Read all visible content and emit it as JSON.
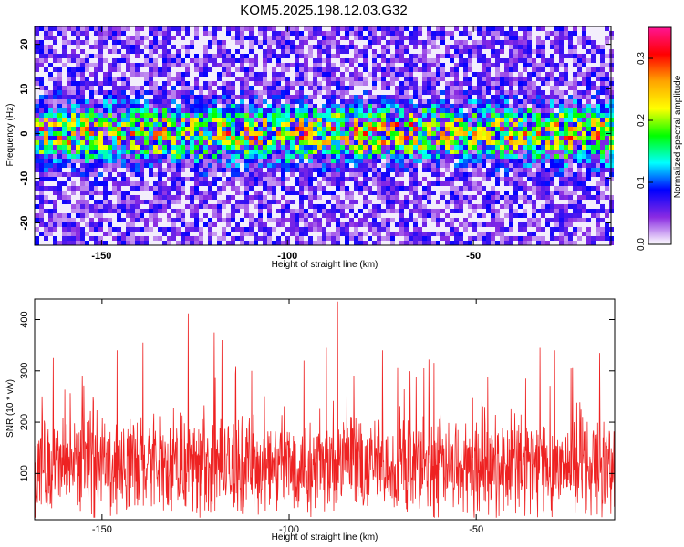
{
  "title": "KOM5.2025.198.12.03.G32",
  "chart_data": [
    {
      "type": "heatmap",
      "xlabel": "Height of straight line (km)",
      "ylabel": "Frequency (Hz)",
      "xlim": [
        -168,
        -13
      ],
      "ylim": [
        -25,
        24
      ],
      "x_ticks": [
        -150,
        -100,
        -50
      ],
      "y_ticks": [
        -20,
        -10,
        0,
        10,
        20
      ],
      "grid": false,
      "description_of_values": "noise-like amplitude field with a bright band of higher amplitude centered near 0 Hz (about ±4 Hz wide) across all heights",
      "band_center_hz": 0,
      "band_halfwidth_hz": 4,
      "colorbar": {
        "label": "Normalized spectral amplitude",
        "range": [
          0.0,
          0.35
        ],
        "ticks": [
          "0.0",
          "0.1",
          "0.2",
          "0.3"
        ],
        "colors": [
          "#ffffff",
          "#8a2be2",
          "#0000ff",
          "#00ffff",
          "#00ff00",
          "#ffff00",
          "#ffa500",
          "#ff0000",
          "#ff1493"
        ]
      }
    },
    {
      "type": "line",
      "xlabel": "Height of straight line (km)",
      "ylabel": "SNR (10 * v/v)",
      "xlim": [
        -168,
        -13
      ],
      "ylim": [
        10,
        440
      ],
      "x_ticks": [
        -150,
        -100,
        -50
      ],
      "y_ticks": [
        100,
        200,
        300,
        400
      ],
      "color": "#ee2222",
      "grid": false,
      "baseline_mean": 115,
      "peaks": [
        {
          "x": -166,
          "y": 250
        },
        {
          "x": -163,
          "y": 325
        },
        {
          "x": -146,
          "y": 340
        },
        {
          "x": -139,
          "y": 355
        },
        {
          "x": -127,
          "y": 412
        },
        {
          "x": -120,
          "y": 375
        },
        {
          "x": -118,
          "y": 360
        },
        {
          "x": -110,
          "y": 300
        },
        {
          "x": -96,
          "y": 320
        },
        {
          "x": -90,
          "y": 345
        },
        {
          "x": -87,
          "y": 435
        },
        {
          "x": -75,
          "y": 340
        },
        {
          "x": -64,
          "y": 305
        },
        {
          "x": -33,
          "y": 345
        },
        {
          "x": -29,
          "y": 340
        },
        {
          "x": -17,
          "y": 335
        }
      ]
    }
  ]
}
